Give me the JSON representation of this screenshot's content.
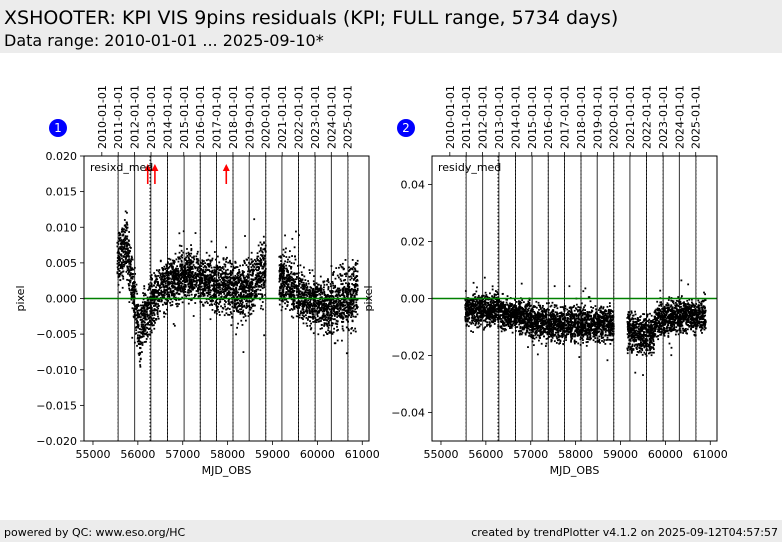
{
  "header": {
    "title": "XSHOOTER: KPI VIS 9pins residuals (KPI; FULL range, 5734 days)",
    "subtitle": "Data range: 2010-01-01 ... 2025-09-10*"
  },
  "footer": {
    "left": "powered by QC: www.eso.org/HC",
    "right": "created by trendPlotter v4.1.2 on 2025-09-12T04:57:57"
  },
  "colors": {
    "points": "#000000",
    "reference_line": "#008000",
    "outlier_arrow": "#ff0000",
    "badge": "#0000ff",
    "header_bg": "#ececec"
  },
  "chart_data": [
    {
      "type": "scatter",
      "badge": "1",
      "title": "",
      "legend": "resixd_med",
      "xlabel": "MJD_OBS",
      "ylabel": "pixel",
      "xlim": [
        54800,
        61150
      ],
      "ylim": [
        -0.02,
        0.02
      ],
      "xticks": [
        55000,
        56000,
        57000,
        58000,
        59000,
        60000,
        61000
      ],
      "yticks": [
        -0.02,
        -0.015,
        -0.01,
        -0.005,
        0.0,
        0.005,
        0.01,
        0.015,
        0.02
      ],
      "ytick_labels": [
        "−0.020",
        "−0.015",
        "−0.010",
        "−0.005",
        "0.000",
        "0.005",
        "0.010",
        "0.015",
        "0.020"
      ],
      "reference_y": 0.0,
      "top_axis": {
        "labels": [
          "2010-01-01",
          "2011-01-01",
          "2012-01-01",
          "2013-01-01",
          "2014-01-01",
          "2015-01-01",
          "2016-01-01",
          "2017-01-01",
          "2018-01-01",
          "2019-01-01",
          "2020-01-01",
          "2021-01-01",
          "2022-01-01",
          "2023-01-01",
          "2024-01-01",
          "2025-01-01"
        ],
        "mjd": [
          55197,
          55562,
          55927,
          56293,
          56658,
          57023,
          57388,
          57754,
          58119,
          58484,
          58849,
          59215,
          59580,
          59945,
          60310,
          60676
        ]
      },
      "vlines_solid": [
        55560,
        55930,
        56290,
        56660,
        57030,
        57390,
        57750,
        58120,
        58480,
        58850,
        59210,
        59580,
        59950,
        60310,
        60680
      ],
      "vlines_dotted": [
        55560,
        56270,
        56660,
        57390,
        57750,
        58120,
        58850,
        59580,
        59950,
        60680
      ],
      "outlier_arrows_x": [
        56220,
        56380,
        57970
      ],
      "segments": [
        {
          "x": [
            55540,
            55760
          ],
          "y": [
            0.005,
            0.008
          ],
          "spread": 0.0035
        },
        {
          "x": [
            55760,
            56060
          ],
          "y": [
            0.007,
            -0.006
          ],
          "spread": 0.003
        },
        {
          "x": [
            56060,
            56500
          ],
          "y": [
            -0.004,
            0.0015
          ],
          "spread": 0.0028
        },
        {
          "x": [
            56500,
            57050
          ],
          "y": [
            0.0015,
            0.0035
          ],
          "spread": 0.0025
        },
        {
          "x": [
            57050,
            57700
          ],
          "y": [
            0.0035,
            0.002
          ],
          "spread": 0.0025
        },
        {
          "x": [
            57700,
            58300
          ],
          "y": [
            0.002,
            0.001
          ],
          "spread": 0.0028
        },
        {
          "x": [
            58300,
            58850
          ],
          "y": [
            0.001,
            0.004
          ],
          "spread": 0.003
        },
        {
          "x": [
            59150,
            59750
          ],
          "y": [
            0.003,
            0.0
          ],
          "spread": 0.0028
        },
        {
          "x": [
            59750,
            60300
          ],
          "y": [
            0.0,
            -0.0015
          ],
          "spread": 0.0025
        },
        {
          "x": [
            60300,
            60900
          ],
          "y": [
            -0.001,
            0.0005
          ],
          "spread": 0.0032
        }
      ]
    },
    {
      "type": "scatter",
      "badge": "2",
      "title": "",
      "legend": "residy_med",
      "xlabel": "MJD_OBS",
      "ylabel": "pixel",
      "xlim": [
        54800,
        61150
      ],
      "ylim": [
        -0.05,
        0.05
      ],
      "xticks": [
        55000,
        56000,
        57000,
        58000,
        59000,
        60000,
        61000
      ],
      "yticks": [
        -0.04,
        -0.02,
        0.0,
        0.02,
        0.04
      ],
      "ytick_labels": [
        "−0.04",
        "−0.02",
        "0.00",
        "0.02",
        "0.04"
      ],
      "reference_y": 0.0,
      "top_axis": {
        "labels": [
          "2010-01-01",
          "2011-01-01",
          "2012-01-01",
          "2013-01-01",
          "2014-01-01",
          "2015-01-01",
          "2016-01-01",
          "2017-01-01",
          "2018-01-01",
          "2019-01-01",
          "2020-01-01",
          "2021-01-01",
          "2022-01-01",
          "2023-01-01",
          "2024-01-01",
          "2025-01-01"
        ],
        "mjd": [
          55197,
          55562,
          55927,
          56293,
          56658,
          57023,
          57388,
          57754,
          58119,
          58484,
          58849,
          59215,
          59580,
          59945,
          60310,
          60676
        ]
      },
      "vlines_solid": [
        55560,
        55930,
        56290,
        56660,
        57030,
        57390,
        57750,
        58120,
        58480,
        58850,
        59210,
        59580,
        59950,
        60310,
        60680
      ],
      "vlines_dotted": [
        55560,
        56270,
        56660,
        57390,
        57750,
        58120,
        58850,
        59580,
        59950,
        60680
      ],
      "outlier_arrows_x": [],
      "segments": [
        {
          "x": [
            55540,
            56300
          ],
          "y": [
            -0.004,
            -0.004
          ],
          "spread": 0.004
        },
        {
          "x": [
            56300,
            57000
          ],
          "y": [
            -0.005,
            -0.007
          ],
          "spread": 0.004
        },
        {
          "x": [
            57000,
            57700
          ],
          "y": [
            -0.008,
            -0.009
          ],
          "spread": 0.0045
        },
        {
          "x": [
            57700,
            58850
          ],
          "y": [
            -0.009,
            -0.009
          ],
          "spread": 0.0045
        },
        {
          "x": [
            59150,
            59750
          ],
          "y": [
            -0.012,
            -0.013
          ],
          "spread": 0.005
        },
        {
          "x": [
            59750,
            60400
          ],
          "y": [
            -0.008,
            -0.006
          ],
          "spread": 0.0045
        },
        {
          "x": [
            60400,
            60900
          ],
          "y": [
            -0.006,
            -0.006
          ],
          "spread": 0.004
        }
      ]
    }
  ]
}
